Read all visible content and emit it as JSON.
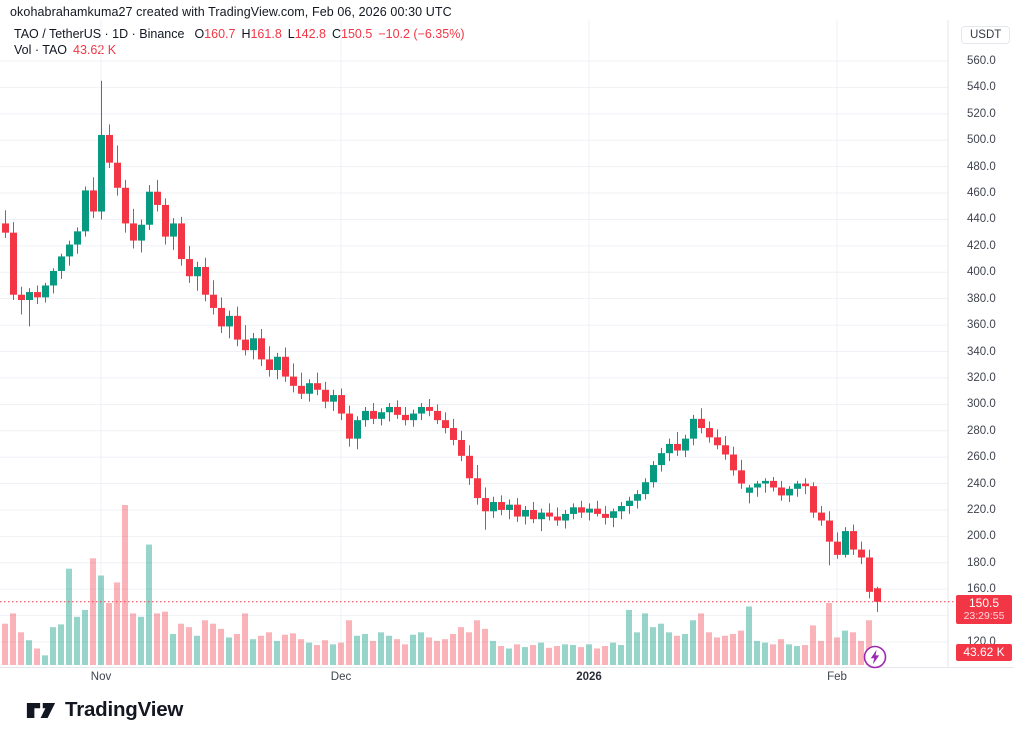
{
  "attribution": "okohabrahamkuma27 created with TradingView.com, Feb 06, 2026 00:30 UTC",
  "legend": {
    "title": "TAO / TetherUS · 1D · Binance",
    "ohlc": [
      {
        "k": "O",
        "v": "160.7"
      },
      {
        "k": "H",
        "v": "161.8"
      },
      {
        "k": "L",
        "v": "142.8"
      },
      {
        "k": "C",
        "v": "150.5"
      }
    ],
    "change": "−10.2 (−6.35%)",
    "vol_title": "Vol · TAO",
    "vol_value": "43.62 K"
  },
  "axis_right": {
    "currency": "USDT",
    "labels": [
      "560.0",
      "540.0",
      "520.0",
      "500.0",
      "480.0",
      "460.0",
      "440.0",
      "420.0",
      "400.0",
      "380.0",
      "360.0",
      "340.0",
      "320.0",
      "300.0",
      "280.0",
      "260.0",
      "240.0",
      "220.0",
      "200.0",
      "180.0",
      "160.0",
      "140.0",
      "120.0"
    ]
  },
  "axis_bottom": [
    {
      "label": "Nov",
      "x": 101,
      "bold": false
    },
    {
      "label": "Dec",
      "x": 341,
      "bold": false
    },
    {
      "label": "2026",
      "x": 589,
      "bold": true
    },
    {
      "label": "Feb",
      "x": 837,
      "bold": false
    }
  ],
  "price_label": {
    "value": "150.5",
    "countdown": "23:29:55"
  },
  "volume_label": {
    "value": "43.62 K"
  },
  "logo_text": "TradingView",
  "colors": {
    "up": "#089981",
    "down": "#f23645",
    "vol_up": "rgba(8,153,129,0.42)",
    "vol_down": "rgba(242,54,69,0.38)",
    "grid": "#eef1f5",
    "separator": "#e4e7ec",
    "price_line": "#f23645",
    "badge_bg": "#f23645",
    "flash_purple": "#9c27b0"
  },
  "chart_data": {
    "type": "candlestick",
    "title": "TAO / TetherUS",
    "interval": "1D",
    "exchange": "Binance",
    "currency": "USDT",
    "ylim": [
      120,
      560
    ],
    "y_tick_step": 20,
    "grid": true,
    "current_price": 150.5,
    "countdown": "23:29:55",
    "current_volume_k": 43.62,
    "last_change": "−10.2 (−6.35%)",
    "columns": [
      "date",
      "open",
      "high",
      "low",
      "close",
      "volume_k"
    ],
    "candles": [
      [
        "2025-10-20",
        437,
        447,
        426,
        430,
        120
      ],
      [
        "2025-10-21",
        430,
        438,
        379,
        383,
        150
      ],
      [
        "2025-10-22",
        383,
        389,
        368,
        379,
        95
      ],
      [
        "2025-10-23",
        379,
        388,
        359,
        385,
        72
      ],
      [
        "2025-10-24",
        385,
        390,
        376,
        381,
        48
      ],
      [
        "2025-10-25",
        381,
        392,
        377,
        390,
        28
      ],
      [
        "2025-10-26",
        390,
        403,
        384,
        401,
        110
      ],
      [
        "2025-10-27",
        401,
        414,
        395,
        412,
        118
      ],
      [
        "2025-10-28",
        412,
        424,
        405,
        421,
        280
      ],
      [
        "2025-10-29",
        421,
        434,
        414,
        431,
        140
      ],
      [
        "2025-10-30",
        431,
        465,
        427,
        462,
        160
      ],
      [
        "2025-10-31",
        462,
        472,
        441,
        446,
        310
      ],
      [
        "2025-11-01",
        446,
        545,
        440,
        504,
        260
      ],
      [
        "2025-11-02",
        504,
        512,
        479,
        483,
        180
      ],
      [
        "2025-11-03",
        483,
        496,
        458,
        464,
        240
      ],
      [
        "2025-11-04",
        464,
        470,
        430,
        437,
        465
      ],
      [
        "2025-11-05",
        437,
        448,
        418,
        424,
        150
      ],
      [
        "2025-11-06",
        424,
        440,
        415,
        436,
        140
      ],
      [
        "2025-11-07",
        436,
        466,
        432,
        461,
        350
      ],
      [
        "2025-11-08",
        461,
        470,
        446,
        451,
        150
      ],
      [
        "2025-11-09",
        451,
        456,
        421,
        427,
        155
      ],
      [
        "2025-11-10",
        427,
        441,
        417,
        437,
        90
      ],
      [
        "2025-11-11",
        437,
        442,
        405,
        410,
        120
      ],
      [
        "2025-11-12",
        410,
        420,
        392,
        397,
        110
      ],
      [
        "2025-11-13",
        397,
        408,
        386,
        404,
        85
      ],
      [
        "2025-11-14",
        404,
        411,
        378,
        383,
        130
      ],
      [
        "2025-11-15",
        383,
        394,
        368,
        373,
        120
      ],
      [
        "2025-11-16",
        373,
        381,
        354,
        359,
        105
      ],
      [
        "2025-11-17",
        359,
        371,
        350,
        367,
        80
      ],
      [
        "2025-11-18",
        367,
        374,
        344,
        349,
        90
      ],
      [
        "2025-11-19",
        349,
        360,
        337,
        341,
        150
      ],
      [
        "2025-11-20",
        341,
        354,
        334,
        350,
        75
      ],
      [
        "2025-11-21",
        350,
        357,
        329,
        334,
        85
      ],
      [
        "2025-11-22",
        334,
        344,
        321,
        326,
        95
      ],
      [
        "2025-11-23",
        326,
        339,
        319,
        336,
        70
      ],
      [
        "2025-11-24",
        336,
        343,
        317,
        321,
        88
      ],
      [
        "2025-11-25",
        321,
        331,
        309,
        314,
        92
      ],
      [
        "2025-11-26",
        314,
        324,
        304,
        308,
        75
      ],
      [
        "2025-11-27",
        308,
        319,
        302,
        316,
        65
      ],
      [
        "2025-11-28",
        316,
        324,
        307,
        311,
        58
      ],
      [
        "2025-11-29",
        311,
        317,
        297,
        302,
        72
      ],
      [
        "2025-11-30",
        302,
        311,
        295,
        307,
        60
      ],
      [
        "2025-12-01",
        307,
        312,
        288,
        293,
        65
      ],
      [
        "2025-12-02",
        293,
        299,
        268,
        274,
        130
      ],
      [
        "2025-12-03",
        274,
        291,
        266,
        288,
        85
      ],
      [
        "2025-12-04",
        288,
        298,
        283,
        295,
        90
      ],
      [
        "2025-12-05",
        295,
        301,
        285,
        289,
        70
      ],
      [
        "2025-12-06",
        289,
        297,
        284,
        294,
        95
      ],
      [
        "2025-12-07",
        294,
        301,
        287,
        298,
        85
      ],
      [
        "2025-12-08",
        298,
        303,
        289,
        292,
        75
      ],
      [
        "2025-12-09",
        292,
        298,
        284,
        288,
        60
      ],
      [
        "2025-12-10",
        288,
        296,
        283,
        293,
        88
      ],
      [
        "2025-12-11",
        293,
        301,
        288,
        298,
        95
      ],
      [
        "2025-12-12",
        298,
        304,
        291,
        295,
        80
      ],
      [
        "2025-12-13",
        295,
        300,
        285,
        288,
        70
      ],
      [
        "2025-12-14",
        288,
        294,
        278,
        282,
        75
      ],
      [
        "2025-12-15",
        282,
        289,
        269,
        273,
        90
      ],
      [
        "2025-12-16",
        273,
        280,
        257,
        261,
        110
      ],
      [
        "2025-12-17",
        261,
        269,
        239,
        244,
        95
      ],
      [
        "2025-12-18",
        244,
        254,
        224,
        229,
        130
      ],
      [
        "2025-12-19",
        229,
        237,
        205,
        219,
        105
      ],
      [
        "2025-12-20",
        219,
        230,
        214,
        226,
        70
      ],
      [
        "2025-12-21",
        226,
        231,
        216,
        220,
        55
      ],
      [
        "2025-12-22",
        220,
        228,
        213,
        224,
        48
      ],
      [
        "2025-12-23",
        224,
        229,
        211,
        215,
        60
      ],
      [
        "2025-12-24",
        215,
        223,
        209,
        220,
        52
      ],
      [
        "2025-12-25",
        220,
        226,
        210,
        213,
        58
      ],
      [
        "2025-12-26",
        213,
        221,
        204,
        218,
        65
      ],
      [
        "2025-12-27",
        218,
        225,
        212,
        215,
        50
      ],
      [
        "2025-12-28",
        215,
        222,
        208,
        212,
        55
      ],
      [
        "2025-12-29",
        212,
        220,
        206,
        217,
        60
      ],
      [
        "2025-12-30",
        217,
        225,
        213,
        222,
        58
      ],
      [
        "2025-12-31",
        222,
        227,
        214,
        218,
        52
      ],
      [
        "2026-01-01",
        218,
        225,
        212,
        221,
        60
      ],
      [
        "2026-01-02",
        221,
        227,
        215,
        217,
        48
      ],
      [
        "2026-01-03",
        217,
        223,
        209,
        214,
        55
      ],
      [
        "2026-01-04",
        214,
        221,
        207,
        219,
        65
      ],
      [
        "2026-01-05",
        219,
        226,
        213,
        223,
        58
      ],
      [
        "2026-01-06",
        223,
        230,
        217,
        227,
        160
      ],
      [
        "2026-01-07",
        227,
        235,
        221,
        232,
        95
      ],
      [
        "2026-01-08",
        232,
        244,
        228,
        241,
        150
      ],
      [
        "2026-01-09",
        241,
        257,
        237,
        254,
        110
      ],
      [
        "2026-01-10",
        254,
        267,
        249,
        263,
        120
      ],
      [
        "2026-01-11",
        263,
        274,
        257,
        270,
        95
      ],
      [
        "2026-01-12",
        270,
        279,
        261,
        265,
        85
      ],
      [
        "2026-01-13",
        265,
        277,
        260,
        274,
        90
      ],
      [
        "2026-01-14",
        274,
        292,
        269,
        289,
        130
      ],
      [
        "2026-01-15",
        289,
        297,
        278,
        282,
        150
      ],
      [
        "2026-01-16",
        282,
        287,
        271,
        275,
        95
      ],
      [
        "2026-01-17",
        275,
        281,
        266,
        269,
        80
      ],
      [
        "2026-01-18",
        269,
        276,
        258,
        262,
        85
      ],
      [
        "2026-01-19",
        262,
        268,
        246,
        250,
        90
      ],
      [
        "2026-01-20",
        250,
        258,
        236,
        240,
        100
      ],
      [
        "2026-01-21",
        233,
        239,
        225,
        237,
        170
      ],
      [
        "2026-01-22",
        237,
        242,
        230,
        240,
        70
      ],
      [
        "2026-01-23",
        240,
        244,
        233,
        242,
        65
      ],
      [
        "2026-01-24",
        242,
        245,
        234,
        237,
        60
      ],
      [
        "2026-01-25",
        237,
        242,
        227,
        231,
        75
      ],
      [
        "2026-01-26",
        231,
        238,
        226,
        236,
        60
      ],
      [
        "2026-01-27",
        236,
        242,
        230,
        240,
        55
      ],
      [
        "2026-01-28",
        240,
        244,
        232,
        238,
        58
      ],
      [
        "2026-01-29",
        238,
        241,
        214,
        218,
        115
      ],
      [
        "2026-01-30",
        218,
        223,
        208,
        212,
        70
      ],
      [
        "2026-01-31",
        212,
        219,
        178,
        196,
        180
      ],
      [
        "2026-02-01",
        196,
        203,
        183,
        186,
        80
      ],
      [
        "2026-02-02",
        186,
        207,
        184,
        204,
        100
      ],
      [
        "2026-02-03",
        204,
        209,
        186,
        190,
        95
      ],
      [
        "2026-02-04",
        190,
        196,
        179,
        184,
        70
      ],
      [
        "2026-02-05",
        184,
        190,
        153,
        158,
        130
      ],
      [
        "2026-02-06",
        160.7,
        161.8,
        142.8,
        150.5,
        43.62
      ]
    ]
  }
}
